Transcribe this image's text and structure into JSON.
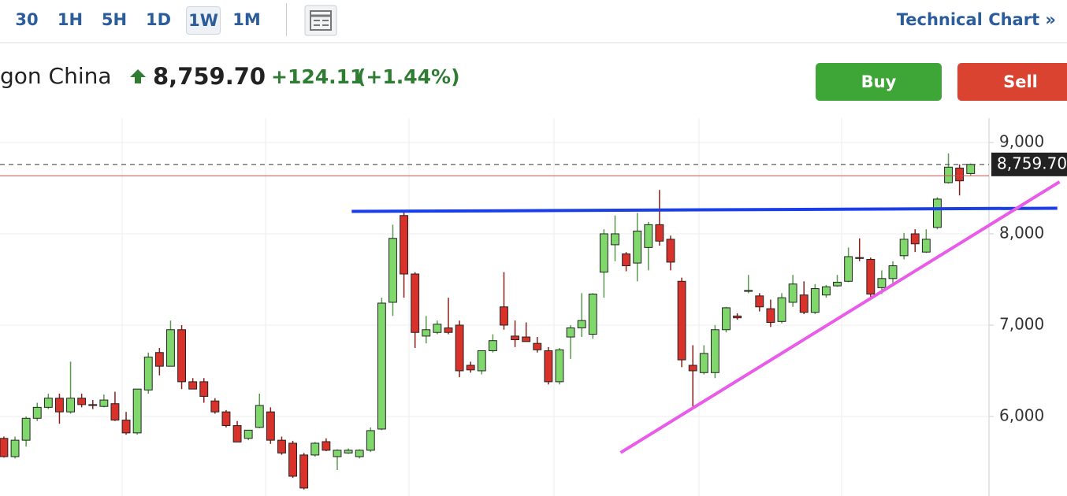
{
  "toolbar": {
    "intervals": [
      "30",
      "1H",
      "5H",
      "1D",
      "1W",
      "1M"
    ],
    "selected": "1W",
    "link": "Technical Chart »"
  },
  "header": {
    "name": "gon China",
    "change": "+124.11",
    "change_pct": "(+1.44%)",
    "buy": "Buy",
    "sell": "Sell"
  },
  "chart_data": {
    "type": "candlestick",
    "categories": [
      null,
      null,
      null,
      null,
      null,
      null,
      null,
      null,
      null,
      null,
      null,
      null,
      null,
      null,
      null,
      null,
      null,
      null,
      null,
      null,
      null,
      null,
      null,
      null,
      null,
      null,
      null,
      null,
      null,
      null,
      null,
      null,
      null,
      null,
      null,
      null,
      null,
      null,
      null,
      null,
      null,
      null,
      null,
      null,
      null,
      null,
      null,
      null,
      null,
      null,
      null,
      null,
      null,
      null,
      null,
      null,
      null,
      null,
      null,
      null,
      null,
      null,
      null,
      null,
      null,
      null,
      null,
      null,
      null,
      null,
      null,
      null,
      null,
      null,
      null,
      null,
      null,
      null,
      null,
      null,
      null,
      null,
      null,
      null,
      null,
      null,
      null,
      null
    ],
    "open": [
      5760,
      5560,
      5740,
      5980,
      6100,
      6200,
      6050,
      6200,
      6130,
      6110,
      6140,
      5960,
      5820,
      6290,
      6700,
      6550,
      6950,
      6380,
      6380,
      6170,
      6050,
      5900,
      5760,
      5880,
      6050,
      5740,
      5707,
      5578,
      5578,
      5724,
      5560,
      5600,
      5560,
      5630,
      5862,
      7250,
      8200,
      7560,
      6880,
      6920,
      6970,
      7000,
      6560,
      6500,
      6720,
      7200,
      6880,
      6870,
      6800,
      6720,
      6380,
      6870,
      6970,
      6900,
      7580,
      7880,
      7780,
      7680,
      7850,
      8100,
      7940,
      7480,
      6560,
      6480,
      6480,
      6950,
      7100,
      7370,
      7320,
      7180,
      7040,
      7250,
      7330,
      7140,
      7330,
      7430,
      7480,
      7740,
      7720,
      7410,
      7510,
      7760,
      8000,
      7800,
      8070,
      8560,
      8720,
      8660
    ],
    "high": [
      5780,
      5780,
      6000,
      6150,
      6250,
      6250,
      6600,
      6250,
      6180,
      6240,
      6270,
      6050,
      6300,
      6700,
      6750,
      7050,
      7000,
      6420,
      6420,
      6200,
      6070,
      5950,
      5850,
      6250,
      6100,
      5780,
      5733,
      5600,
      5720,
      5760,
      5640,
      5650,
      5640,
      5880,
      7300,
      8100,
      8250,
      7580,
      7100,
      7050,
      7300,
      7050,
      6600,
      6720,
      6900,
      7580,
      7050,
      7030,
      6870,
      6760,
      6750,
      7000,
      7350,
      7350,
      8050,
      8200,
      7800,
      8230,
      8130,
      8480,
      7980,
      7520,
      6780,
      6780,
      7000,
      7200,
      7130,
      7550,
      7350,
      7280,
      7350,
      7550,
      7480,
      7450,
      7440,
      7550,
      7850,
      7950,
      7740,
      7600,
      7700,
      8010,
      8050,
      8050,
      8400,
      8880,
      8760,
      8770
    ],
    "low": [
      5550,
      5540,
      5670,
      5950,
      6080,
      5920,
      6030,
      6100,
      6080,
      6100,
      5950,
      5800,
      5800,
      6250,
      6450,
      6550,
      6300,
      6300,
      6150,
      6030,
      5880,
      5720,
      5740,
      5870,
      5700,
      5580,
      5328,
      5200,
      5560,
      5620,
      5414,
      5590,
      5540,
      5610,
      5850,
      7100,
      7300,
      6750,
      6800,
      6900,
      6900,
      6430,
      6480,
      6460,
      6700,
      6950,
      6760,
      6820,
      6700,
      6350,
      6350,
      6630,
      6870,
      6850,
      7300,
      7700,
      7590,
      7480,
      7600,
      7870,
      7600,
      6540,
      6110,
      6460,
      6420,
      6920,
      7060,
      7350,
      7150,
      6980,
      7020,
      7200,
      7120,
      7120,
      7300,
      7420,
      7470,
      7700,
      7280,
      7340,
      7450,
      7720,
      7800,
      7790,
      8050,
      8550,
      8420,
      8640
    ],
    "close": [
      5560,
      5740,
      5980,
      6100,
      6200,
      6050,
      6200,
      6130,
      6120,
      6180,
      5960,
      5820,
      6300,
      6650,
      6550,
      6950,
      6380,
      6300,
      6220,
      6050,
      5900,
      5720,
      5850,
      6120,
      5740,
      5600,
      5345,
      5216,
      5707,
      5630,
      5630,
      5630,
      5630,
      5845,
      7241,
      7950,
      7560,
      6920,
      6950,
      7010,
      6920,
      6500,
      6510,
      6720,
      6830,
      7000,
      6840,
      6820,
      6730,
      6380,
      6730,
      6970,
      7050,
      7340,
      8000,
      8000,
      7650,
      8030,
      8100,
      7920,
      7690,
      6620,
      6500,
      6690,
      6950,
      7190,
      7080,
      7380,
      7200,
      7030,
      7300,
      7450,
      7140,
      7400,
      7420,
      7470,
      7750,
      7730,
      7340,
      7510,
      7650,
      7940,
      7890,
      7940,
      8380,
      8730,
      8580,
      8760
    ],
    "up_color": "#80d86c",
    "down_color": "#d9322b",
    "xlim": [
      -0.35,
      88.65
    ],
    "ylim": [
      5129,
      9267
    ],
    "yticks": [
      {
        "value": 6000,
        "label": "6,000"
      },
      {
        "value": 7000,
        "label": "7,000"
      },
      {
        "value": 8000,
        "label": "8,000"
      },
      {
        "value": 9000,
        "label": "9,000"
      }
    ],
    "grid": true,
    "last_price": {
      "value": 8759.7,
      "label": "8,759.70"
    },
    "reference_line": 8635.59,
    "trendlines": [
      {
        "color": "#1a3ee8",
        "x": [
          31.3,
          94.8
        ],
        "y": [
          8245,
          8280
        ]
      },
      {
        "color": "#e95ce9",
        "x": [
          55.5,
          95.0
        ],
        "y": [
          5604,
          8569
        ]
      }
    ]
  }
}
